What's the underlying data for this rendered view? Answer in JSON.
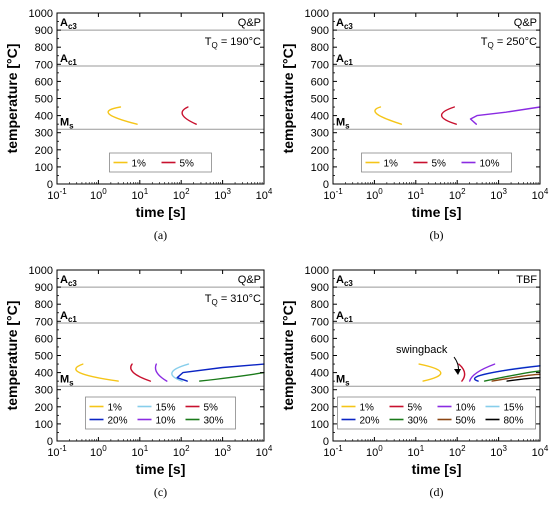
{
  "chart_data": [
    {
      "type": "line",
      "caption": "(a)",
      "process_label": "Q&P",
      "tq_label": "T",
      "tq_sub": "Q",
      "tq_value": " = 190°C",
      "xlabel": "time [s]",
      "ylabel": "temperature [°C]",
      "x_scale": "log",
      "xlim": [
        0.1,
        10000
      ],
      "ylim": [
        0,
        1000
      ],
      "x_tick_values": [
        0.1,
        1,
        10,
        100,
        1000,
        10000
      ],
      "x_tick_bases": [
        "10",
        "10",
        "10",
        "10",
        "10",
        "10"
      ],
      "x_tick_exps": [
        "-1",
        "0",
        "1",
        "2",
        "3",
        "4"
      ],
      "y_tick_values": [
        0,
        100,
        200,
        300,
        400,
        500,
        600,
        700,
        800,
        900,
        1000
      ],
      "y_tick_labels": [
        "0",
        "100",
        "200",
        "300",
        "400",
        "500",
        "600",
        "700",
        "800",
        "900",
        "1000"
      ],
      "ref_lines": [
        {
          "y": 900,
          "label": "A",
          "sub": "c3"
        },
        {
          "y": 690,
          "label": "A",
          "sub": "c1"
        },
        {
          "y": 320,
          "label": "M",
          "sub": "s"
        }
      ],
      "legend_placement": "bottom-center",
      "legend_cols": 2,
      "series": [
        {
          "name": "1%",
          "color": "#f5c518",
          "points": [
            [
              3.4,
              450
            ],
            [
              1.8,
              410
            ],
            [
              8.6,
              350
            ]
          ]
        },
        {
          "name": "5%",
          "color": "#c8102e",
          "points": [
            [
              145,
              450
            ],
            [
              108,
              405
            ],
            [
              230,
              350
            ]
          ]
        }
      ]
    },
    {
      "type": "line",
      "caption": "(b)",
      "process_label": "Q&P",
      "tq_label": "T",
      "tq_sub": "Q",
      "tq_value": " = 250°C",
      "xlabel": "time [s]",
      "ylabel": "temperature [°C]",
      "x_scale": "log",
      "xlim": [
        0.1,
        10000
      ],
      "ylim": [
        0,
        1000
      ],
      "x_tick_values": [
        0.1,
        1,
        10,
        100,
        1000,
        10000
      ],
      "x_tick_bases": [
        "10",
        "10",
        "10",
        "10",
        "10",
        "10"
      ],
      "x_tick_exps": [
        "-1",
        "0",
        "1",
        "2",
        "3",
        "4"
      ],
      "y_tick_values": [
        0,
        100,
        200,
        300,
        400,
        500,
        600,
        700,
        800,
        900,
        1000
      ],
      "y_tick_labels": [
        "0",
        "100",
        "200",
        "300",
        "400",
        "500",
        "600",
        "700",
        "800",
        "900",
        "1000"
      ],
      "ref_lines": [
        {
          "y": 900,
          "label": "A",
          "sub": "c3"
        },
        {
          "y": 690,
          "label": "A",
          "sub": "c1"
        },
        {
          "y": 320,
          "label": "M",
          "sub": "s"
        }
      ],
      "legend_placement": "bottom-center",
      "legend_cols": 3,
      "series": [
        {
          "name": "1%",
          "color": "#f5c518",
          "points": [
            [
              1.4,
              450
            ],
            [
              1.15,
              410
            ],
            [
              4.5,
              350
            ]
          ]
        },
        {
          "name": "5%",
          "color": "#c8102e",
          "points": [
            [
              85,
              450
            ],
            [
              42,
              400
            ],
            [
              95,
              350
            ]
          ]
        },
        {
          "name": "10%",
          "color": "#8a2be2",
          "points": [
            [
              290,
              350
            ],
            [
              210,
              380
            ],
            [
              300,
              400
            ],
            [
              1500,
              420
            ],
            [
              10000,
              450
            ]
          ]
        }
      ]
    },
    {
      "type": "line",
      "caption": "(c)",
      "process_label": "Q&P",
      "tq_label": "T",
      "tq_sub": "Q",
      "tq_value": " = 310°C",
      "xlabel": "time [s]",
      "ylabel": "temperature [°C]",
      "x_scale": "log",
      "xlim": [
        0.1,
        10000
      ],
      "ylim": [
        0,
        1000
      ],
      "x_tick_values": [
        0.1,
        1,
        10,
        100,
        1000,
        10000
      ],
      "x_tick_bases": [
        "10",
        "10",
        "10",
        "10",
        "10",
        "10"
      ],
      "x_tick_exps": [
        "-1",
        "0",
        "1",
        "2",
        "3",
        "4"
      ],
      "y_tick_values": [
        0,
        100,
        200,
        300,
        400,
        500,
        600,
        700,
        800,
        900,
        1000
      ],
      "y_tick_labels": [
        "0",
        "100",
        "200",
        "300",
        "400",
        "500",
        "600",
        "700",
        "800",
        "900",
        "1000"
      ],
      "ref_lines": [
        {
          "y": 900,
          "label": "A",
          "sub": "c3"
        },
        {
          "y": 690,
          "label": "A",
          "sub": "c1"
        },
        {
          "y": 320,
          "label": "M",
          "sub": "s"
        }
      ],
      "legend_placement": "bottom-center",
      "legend_cols": 3,
      "series": [
        {
          "name": "1%",
          "color": "#f5c518",
          "points": [
            [
              0.42,
              450
            ],
            [
              0.35,
              400
            ],
            [
              3.0,
              350
            ]
          ]
        },
        {
          "name": "15%",
          "color": "#87ceeb",
          "points": [
            [
              150,
              450
            ],
            [
              60,
              400
            ],
            [
              105,
              350
            ]
          ]
        },
        {
          "name": "5%",
          "color": "#c8102e",
          "points": [
            [
              6.5,
              450
            ],
            [
              7.0,
              400
            ],
            [
              18,
              350
            ]
          ]
        },
        {
          "name": "20%",
          "color": "#0b24c4",
          "points": [
            [
              140,
              350
            ],
            [
              80,
              370
            ],
            [
              110,
              400
            ],
            [
              1000,
              430
            ],
            [
              10000,
              450
            ]
          ]
        },
        {
          "name": "10%",
          "color": "#8a2be2",
          "points": [
            [
              25,
              450
            ],
            [
              26,
              400
            ],
            [
              45,
              350
            ]
          ]
        },
        {
          "name": "30%",
          "color": "#1a7a1a",
          "points": [
            [
              280,
              350
            ],
            [
              2000,
              375
            ],
            [
              10000,
              400
            ]
          ]
        }
      ]
    },
    {
      "type": "line",
      "caption": "(d)",
      "process_label": "TBF",
      "annotation": "swingback",
      "xlabel": "time [s]",
      "ylabel": "temperature [°C]",
      "x_scale": "log",
      "xlim": [
        0.1,
        10000
      ],
      "ylim": [
        0,
        1000
      ],
      "x_tick_values": [
        0.1,
        1,
        10,
        100,
        1000,
        10000
      ],
      "x_tick_bases": [
        "10",
        "10",
        "10",
        "10",
        "10",
        "10"
      ],
      "x_tick_exps": [
        "-1",
        "0",
        "1",
        "2",
        "3",
        "4"
      ],
      "y_tick_values": [
        0,
        100,
        200,
        300,
        400,
        500,
        600,
        700,
        800,
        900,
        1000
      ],
      "y_tick_labels": [
        "0",
        "100",
        "200",
        "300",
        "400",
        "500",
        "600",
        "700",
        "800",
        "900",
        "1000"
      ],
      "ref_lines": [
        {
          "y": 900,
          "label": "A",
          "sub": "c3"
        },
        {
          "y": 690,
          "label": "A",
          "sub": "c1"
        },
        {
          "y": 320,
          "label": "M",
          "sub": "s"
        }
      ],
      "legend_placement": "bottom-center",
      "legend_cols": 4,
      "series": [
        {
          "name": "1%",
          "color": "#f5c518",
          "points": [
            [
              12,
              450
            ],
            [
              40,
              400
            ],
            [
              15,
              350
            ]
          ]
        },
        {
          "name": "5%",
          "color": "#c8102e",
          "points": [
            [
              110,
              450
            ],
            [
              150,
              400
            ],
            [
              130,
              350
            ]
          ]
        },
        {
          "name": "10%",
          "color": "#8a2be2",
          "points": [
            [
              800,
              450
            ],
            [
              300,
              400
            ],
            [
              200,
              350
            ]
          ]
        },
        {
          "name": "15%",
          "color": "#87ceeb",
          "points": [
            [
              320,
              380
            ],
            [
              2000,
              420
            ],
            [
              10000,
              440
            ]
          ]
        },
        {
          "name": "20%",
          "color": "#0b24c4",
          "points": [
            [
              320,
              350
            ],
            [
              450,
              390
            ],
            [
              10000,
              440
            ]
          ]
        },
        {
          "name": "30%",
          "color": "#1a7a1a",
          "points": [
            [
              460,
              350
            ],
            [
              3000,
              390
            ],
            [
              10000,
              410
            ]
          ]
        },
        {
          "name": "50%",
          "color": "#8b4513",
          "points": [
            [
              700,
              350
            ],
            [
              4000,
              380
            ],
            [
              10000,
              390
            ]
          ]
        },
        {
          "name": "80%",
          "color": "#000000",
          "points": [
            [
              1600,
              350
            ],
            [
              5000,
              365
            ],
            [
              10000,
              370
            ]
          ]
        }
      ]
    }
  ]
}
